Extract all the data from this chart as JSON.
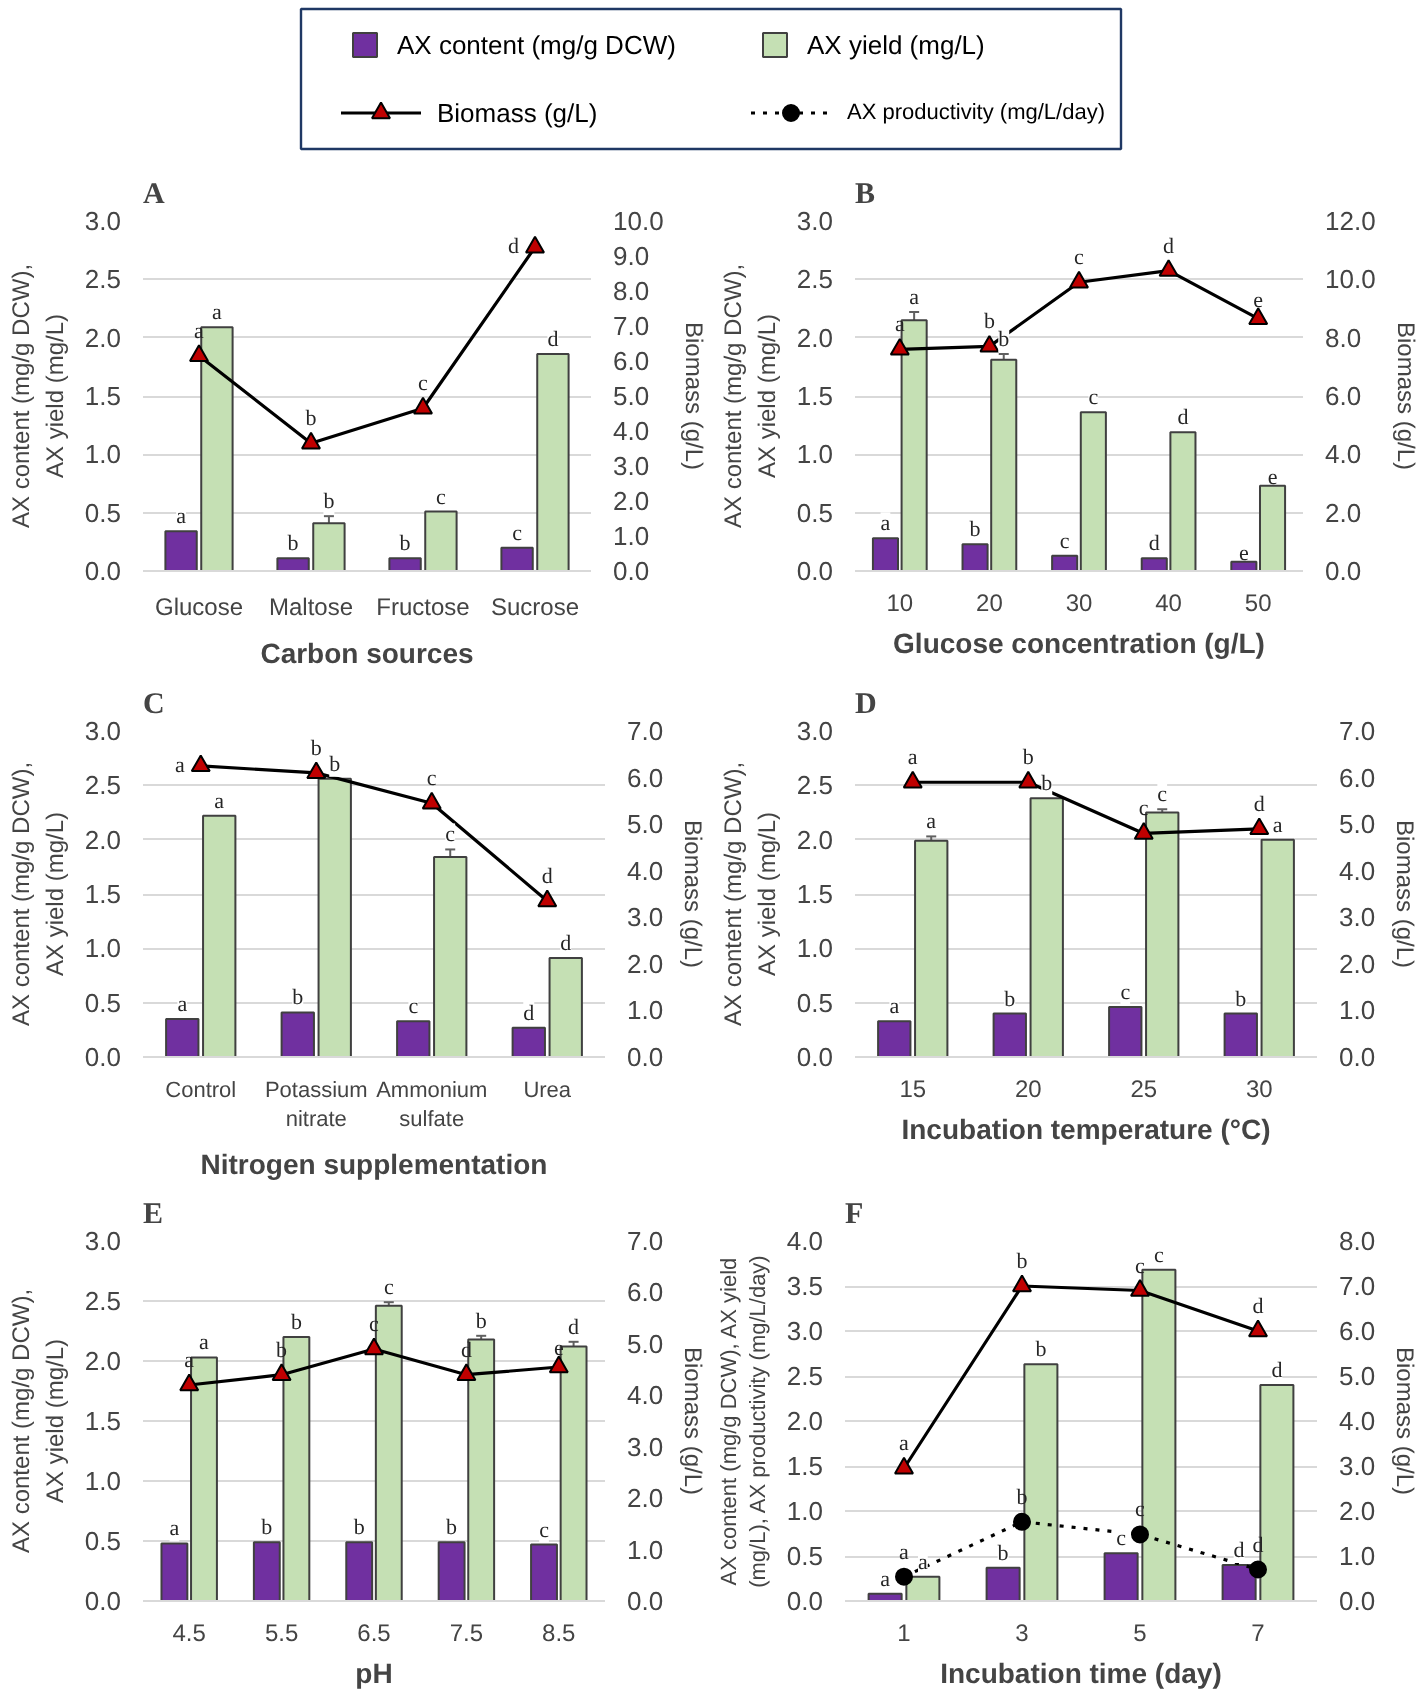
{
  "chart_data": [
    {
      "type": "bar",
      "title": "A",
      "xlabel": "Carbon sources",
      "ylabel": "AX content (mg/g DCW),\nAX yield (mg/L)",
      "y2label": "Biomass (g/L)",
      "legend": "top",
      "grid": "y",
      "categories": [
        "Glucose",
        "Maltose",
        "Fructose",
        "Sucrose"
      ],
      "series": [
        {
          "name": "AX content (mg/g DCW)",
          "color": "#7030a0",
          "values": [
            0.34,
            0.11,
            0.11,
            0.2
          ],
          "value_labels": [
            "a",
            "b",
            "b",
            "c"
          ]
        },
        {
          "name": "AX yield (mg/L)",
          "color": "#c5e0b4",
          "values": [
            2.09,
            0.41,
            0.51,
            1.86
          ],
          "errors": [
            null,
            0.06,
            null,
            null
          ],
          "value_labels": [
            "a",
            "b",
            "c",
            "d"
          ]
        },
        {
          "name": "Biomass (g/L)",
          "type": "line",
          "axis": "y2",
          "color": "#000000",
          "marker": "triangle",
          "line_style": "solid",
          "values": [
            6.15,
            3.65,
            4.65,
            9.25
          ],
          "value_labels": [
            "a",
            "b",
            "c",
            "d"
          ]
        }
      ],
      "ylim": [
        0,
        3
      ],
      "yticks": [
        {
          "value": 0,
          "label": "0.0"
        },
        0.5,
        {
          "value": 1,
          "label": "1.0"
        },
        1.5,
        {
          "value": 2,
          "label": "2.0"
        },
        2.5,
        {
          "value": 3,
          "label": "3.0"
        }
      ],
      "y2lim": [
        0,
        10
      ],
      "y2ticks": [
        {
          "value": 0,
          "label": "0.0"
        },
        {
          "value": 1,
          "label": "1.0"
        },
        {
          "value": 2,
          "label": "2.0"
        },
        {
          "value": 3,
          "label": "3.0"
        },
        {
          "value": 4,
          "label": "4.0"
        },
        {
          "value": 5,
          "label": "5.0"
        },
        {
          "value": 6,
          "label": "6.0"
        },
        {
          "value": 7,
          "label": "7.0"
        },
        {
          "value": 8,
          "label": "8.0"
        },
        {
          "value": 9,
          "label": "9.0"
        },
        {
          "value": 10,
          "label": "10.0"
        }
      ]
    },
    {
      "type": "bar",
      "title": "B",
      "xlabel": "Glucose concentration (g/L)",
      "ylabel": "AX content (mg/g DCW),\nAX yield (mg/L)",
      "y2label": "Biomass (g/L)",
      "grid": "y",
      "categories": [
        "10",
        "20",
        "30",
        "40",
        "50"
      ],
      "series": [
        {
          "type": "bar",
          "color": "#7030a0",
          "values": [
            0.28,
            0.23,
            0.13,
            0.11,
            0.08
          ],
          "value_labels": [
            "a",
            "b",
            "c",
            "d",
            "e"
          ]
        },
        {
          "type": "bar",
          "color": "#c5e0b4",
          "values": [
            2.15,
            1.81,
            1.36,
            1.19,
            0.73
          ],
          "errors": [
            0.07,
            0.05,
            null,
            null,
            null
          ],
          "value_labels": [
            "a",
            "b",
            "c",
            "d",
            "e"
          ]
        },
        {
          "type": "line",
          "axis": "y2",
          "color": "#000000",
          "marker": "triangle",
          "line_style": "solid",
          "values": [
            7.6,
            7.7,
            9.9,
            10.3,
            8.65
          ],
          "value_labels": [
            "a",
            "b",
            "c",
            "d",
            "e"
          ]
        }
      ],
      "ylim": [
        0,
        3
      ],
      "yticks": [
        {
          "value": 0,
          "label": "0.0"
        },
        0.5,
        {
          "value": 1,
          "label": "1.0"
        },
        1.5,
        {
          "value": 2,
          "label": "2.0"
        },
        2.5,
        {
          "value": 3,
          "label": "3.0"
        }
      ],
      "y2lim": [
        0,
        12
      ],
      "y2ticks": [
        {
          "value": 0,
          "label": "0.0"
        },
        {
          "value": 2,
          "label": "2.0"
        },
        {
          "value": 4,
          "label": "4.0"
        },
        {
          "value": 6,
          "label": "6.0"
        },
        {
          "value": 8,
          "label": "8.0"
        },
        {
          "value": 10,
          "label": "10.0"
        },
        {
          "value": 12,
          "label": "12.0"
        }
      ]
    },
    {
      "type": "bar",
      "title": "C",
      "xlabel": "Nitrogen supplementation",
      "ylabel": "AX content (mg/g DCW),\nAX yield (mg/L)",
      "y2label": "Biomass (g/L)",
      "grid": "y",
      "categories": [
        "Control",
        "Potassium nitrate",
        "Ammonium sulfate",
        "Urea"
      ],
      "series": [
        {
          "type": "bar",
          "color": "#7030a0",
          "values": [
            0.35,
            0.41,
            0.33,
            0.27
          ],
          "value_labels": [
            "a",
            "b",
            "c",
            "d"
          ]
        },
        {
          "type": "bar",
          "color": "#c5e0b4",
          "values": [
            2.22,
            2.56,
            1.84,
            0.91
          ],
          "errors": [
            null,
            null,
            0.07,
            null
          ],
          "value_labels": [
            "a",
            "b",
            "c",
            "d"
          ]
        },
        {
          "type": "line",
          "axis": "y2",
          "color": "#000000",
          "marker": "triangle",
          "line_style": "solid",
          "values": [
            6.25,
            6.1,
            5.45,
            3.35
          ],
          "value_labels": [
            "a",
            "b",
            "c",
            "d"
          ]
        }
      ],
      "ylim": [
        0,
        3
      ],
      "yticks": [
        {
          "value": 0,
          "label": "0.0"
        },
        0.5,
        {
          "value": 1,
          "label": "1.0"
        },
        1.5,
        {
          "value": 2,
          "label": "2.0"
        },
        2.5,
        {
          "value": 3,
          "label": "3.0"
        }
      ],
      "y2lim": [
        0,
        7
      ],
      "y2ticks": [
        {
          "value": 0,
          "label": "0.0"
        },
        {
          "value": 1,
          "label": "1.0"
        },
        {
          "value": 2,
          "label": "2.0"
        },
        {
          "value": 3,
          "label": "3.0"
        },
        {
          "value": 4,
          "label": "4.0"
        },
        {
          "value": 5,
          "label": "5.0"
        },
        {
          "value": 6,
          "label": "6.0"
        },
        {
          "value": 7,
          "label": "7.0"
        }
      ]
    },
    {
      "type": "bar",
      "title": "D",
      "xlabel": "Incubation temperature (°C)",
      "ylabel": "AX content (mg/g DCW),\nAX yield (mg/L)",
      "y2label": "Biomass (g/L)",
      "grid": "y",
      "categories": [
        "15",
        "20",
        "25",
        "30"
      ],
      "series": [
        {
          "type": "bar",
          "color": "#7030a0",
          "values": [
            0.33,
            0.4,
            0.46,
            0.4
          ],
          "value_labels": [
            "a",
            "b",
            "c",
            "b"
          ]
        },
        {
          "type": "bar",
          "color": "#c5e0b4",
          "values": [
            1.99,
            2.38,
            2.25,
            2.0
          ],
          "errors": [
            0.04,
            null,
            0.03,
            null
          ],
          "value_labels": [
            "a",
            "b",
            "c",
            "a"
          ]
        },
        {
          "type": "line",
          "axis": "y2",
          "color": "#000000",
          "marker": "triangle",
          "line_style": "solid",
          "values": [
            5.9,
            5.9,
            4.8,
            4.9
          ],
          "value_labels": [
            "a",
            "b",
            "c",
            "d"
          ]
        }
      ],
      "ylim": [
        0,
        3
      ],
      "yticks": [
        {
          "value": 0,
          "label": "0.0"
        },
        0.5,
        {
          "value": 1,
          "label": "1.0"
        },
        1.5,
        {
          "value": 2,
          "label": "2.0"
        },
        2.5,
        {
          "value": 3,
          "label": "3.0"
        }
      ],
      "y2lim": [
        0,
        7
      ],
      "y2ticks": [
        {
          "value": 0,
          "label": "0.0"
        },
        {
          "value": 1,
          "label": "1.0"
        },
        {
          "value": 2,
          "label": "2.0"
        },
        {
          "value": 3,
          "label": "3.0"
        },
        {
          "value": 4,
          "label": "4.0"
        },
        {
          "value": 5,
          "label": "5.0"
        },
        {
          "value": 6,
          "label": "6.0"
        },
        {
          "value": 7,
          "label": "7.0"
        }
      ]
    },
    {
      "type": "bar",
      "title": "E",
      "xlabel": "pH",
      "ylabel": "AX content (mg/g DCW),\nAX yield (mg/L)",
      "y2label": "Biomass (g/L)",
      "grid": "y",
      "categories": [
        "4.5",
        "5.5",
        "6.5",
        "7.5",
        "8.5"
      ],
      "series": [
        {
          "type": "bar",
          "color": "#7030a0",
          "values": [
            0.48,
            0.49,
            0.49,
            0.49,
            0.47
          ],
          "value_labels": [
            "a",
            "b",
            "b",
            "b",
            "c"
          ]
        },
        {
          "type": "bar",
          "color": "#c5e0b4",
          "values": [
            2.03,
            2.2,
            2.46,
            2.18,
            2.12
          ],
          "errors": [
            null,
            null,
            0.03,
            0.03,
            0.04
          ],
          "value_labels": [
            "a",
            "b",
            "c",
            "b",
            "d"
          ]
        },
        {
          "type": "line",
          "axis": "y2",
          "color": "#000000",
          "marker": "triangle",
          "line_style": "solid",
          "values": [
            4.2,
            4.4,
            4.9,
            4.4,
            4.55
          ],
          "value_labels": [
            "a",
            "b",
            "c",
            "d",
            "e"
          ]
        }
      ],
      "ylim": [
        0,
        3
      ],
      "yticks": [
        {
          "value": 0,
          "label": "0.0"
        },
        0.5,
        {
          "value": 1,
          "label": "1.0"
        },
        1.5,
        {
          "value": 2,
          "label": "2.0"
        },
        2.5,
        {
          "value": 3,
          "label": "3.0"
        }
      ],
      "y2lim": [
        0,
        7
      ],
      "y2ticks": [
        {
          "value": 0,
          "label": "0.0"
        },
        {
          "value": 1,
          "label": "1.0"
        },
        {
          "value": 2,
          "label": "2.0"
        },
        {
          "value": 3,
          "label": "3.0"
        },
        {
          "value": 4,
          "label": "4.0"
        },
        {
          "value": 5,
          "label": "5.0"
        },
        {
          "value": 6,
          "label": "6.0"
        },
        {
          "value": 7,
          "label": "7.0"
        }
      ]
    },
    {
      "type": "bar",
      "title": "F",
      "xlabel": "Incubation time (day)",
      "ylabel": "AX content (mg/g DCW), AX yield\n(mg/L), AX productivity (mg/L/day)",
      "y2label": "Biomass (g/L)",
      "legend": "top",
      "grid": "y",
      "categories": [
        "1",
        "3",
        "5",
        "7"
      ],
      "series": [
        {
          "type": "bar",
          "color": "#7030a0",
          "values": [
            0.08,
            0.37,
            0.53,
            0.4
          ],
          "value_labels": [
            "a",
            "b",
            "c",
            "d"
          ]
        },
        {
          "type": "bar",
          "color": "#c5e0b4",
          "values": [
            0.27,
            2.63,
            3.68,
            2.4
          ],
          "value_labels": [
            "a",
            "b",
            "c",
            "d"
          ]
        },
        {
          "type": "line",
          "axis": "y2",
          "color": "#000000",
          "marker": "triangle",
          "line_style": "solid",
          "values": [
            2.95,
            7.0,
            6.9,
            6.0
          ],
          "value_labels": [
            "a",
            "b",
            "c",
            "d"
          ]
        },
        {
          "name": "AX productivity (mg/L/day)",
          "type": "line",
          "color": "#000000",
          "marker": "circle",
          "line_style": "dotted",
          "values": [
            0.27,
            0.88,
            0.74,
            0.35
          ],
          "value_labels": [
            "a",
            "b",
            "c",
            "d"
          ]
        }
      ],
      "ylim": [
        0,
        4
      ],
      "yticks": [
        {
          "value": 0,
          "label": "0.0"
        },
        0.5,
        {
          "value": 1,
          "label": "1.0"
        },
        1.5,
        {
          "value": 2,
          "label": "2.0"
        },
        2.5,
        {
          "value": 3,
          "label": "3.0"
        },
        3.5,
        {
          "value": 4,
          "label": "4.0"
        }
      ],
      "y2lim": [
        0,
        8
      ],
      "y2ticks": [
        {
          "value": 0,
          "label": "0.0"
        },
        {
          "value": 1,
          "label": "1.0"
        },
        {
          "value": 2,
          "label": "2.0"
        },
        {
          "value": 3,
          "label": "3.0"
        },
        {
          "value": 4,
          "label": "4.0"
        },
        {
          "value": 5,
          "label": "5.0"
        },
        {
          "value": 6,
          "label": "6.0"
        },
        {
          "value": 7,
          "label": "7.0"
        },
        {
          "value": 8,
          "label": "8.0"
        }
      ]
    }
  ]
}
